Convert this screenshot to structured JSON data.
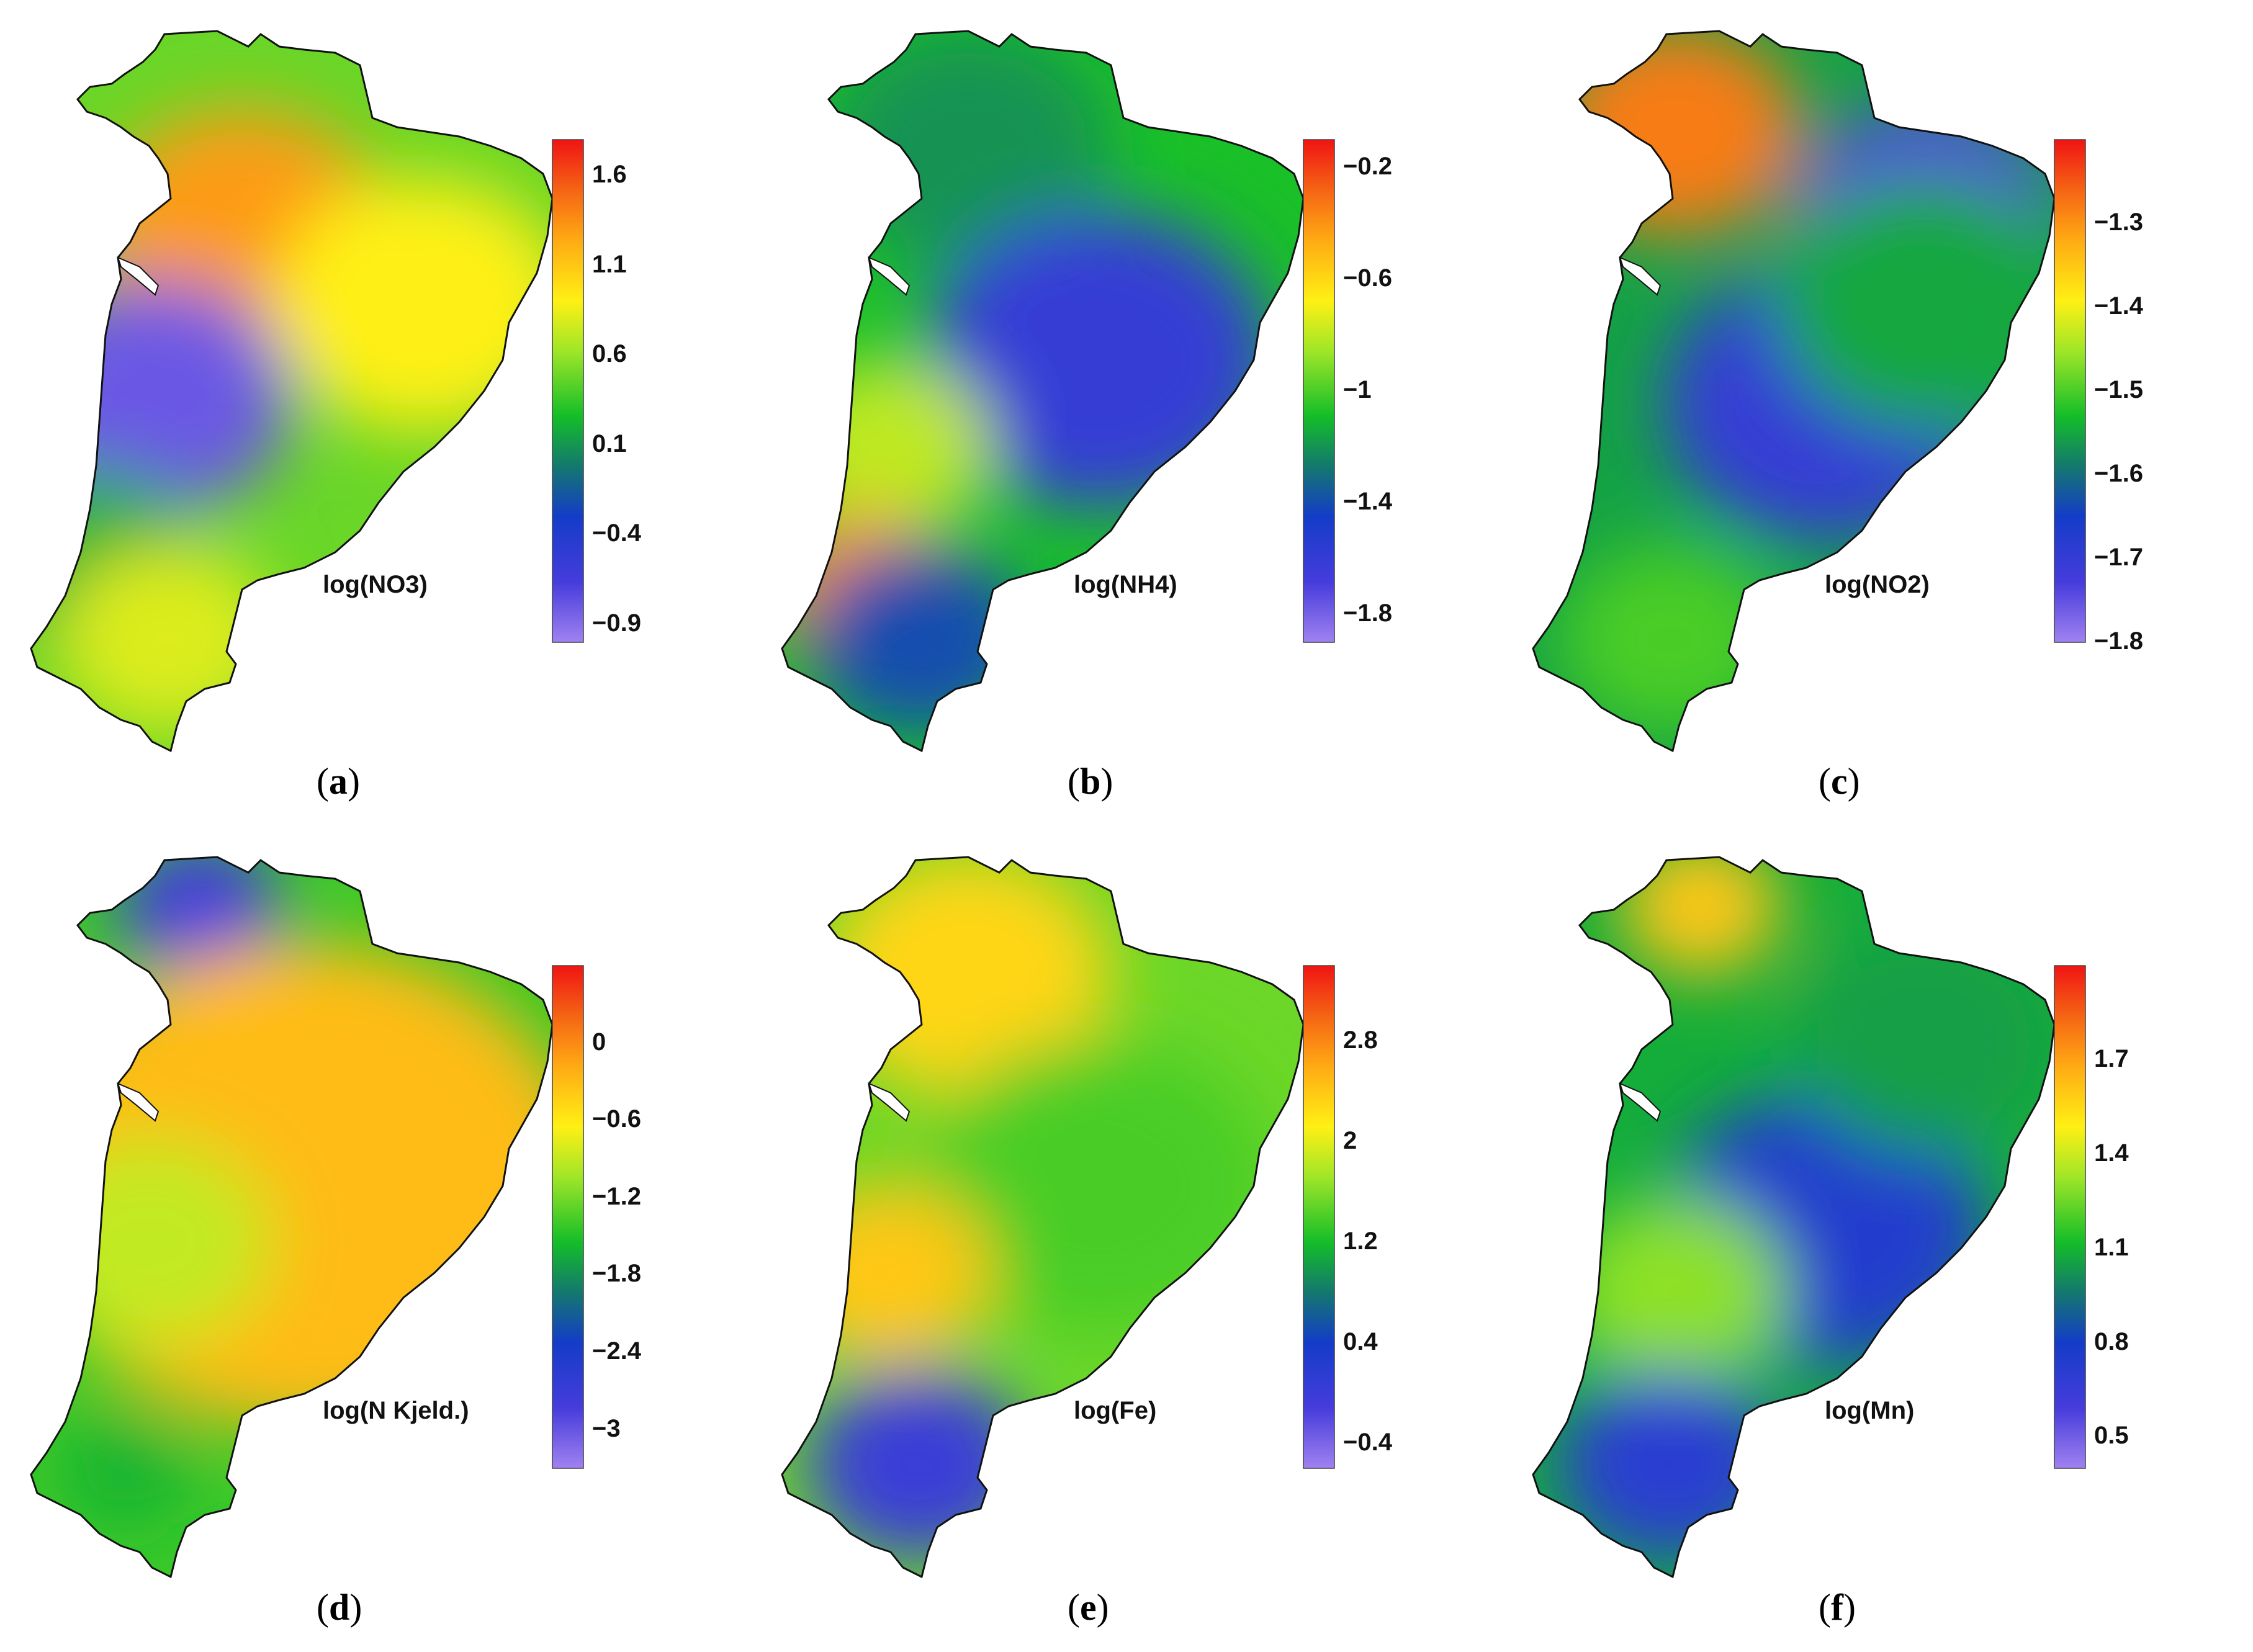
{
  "figure": {
    "panels": [
      {
        "id": "a",
        "caption_letter": "a",
        "variable_label": "log(NO3)",
        "colorbar": {
          "min": -1.0,
          "max": 1.8,
          "tick_labels": [
            "1.6",
            "1.1",
            "0.6",
            "0.1",
            "−0.4",
            "−0.9"
          ],
          "tick_values": [
            1.6,
            1.1,
            0.6,
            0.1,
            -0.4,
            -0.9
          ]
        },
        "zones": [
          {
            "region": "northeast-center",
            "level": 1.3
          },
          {
            "region": "east",
            "level": 0.9
          },
          {
            "region": "west-coast-center",
            "level": -0.8
          },
          {
            "region": "southwest",
            "level": 0.2
          },
          {
            "region": "south",
            "level": 0.8
          }
        ]
      },
      {
        "id": "b",
        "caption_letter": "b",
        "variable_label": "log(NH4)",
        "colorbar": {
          "min": -1.9,
          "max": -0.1,
          "tick_labels": [
            "−0.2",
            "−0.6",
            "−1",
            "−1.4",
            "−1.8"
          ],
          "tick_values": [
            -0.2,
            -0.6,
            -1.0,
            -1.4,
            -1.8
          ]
        },
        "zones": [
          {
            "region": "north",
            "level": -1.2
          },
          {
            "region": "center-east",
            "level": -1.6
          },
          {
            "region": "west-coast",
            "level": -0.8
          },
          {
            "region": "southwest-coast",
            "level": -0.4
          },
          {
            "region": "south",
            "level": -1.4
          }
        ]
      },
      {
        "id": "c",
        "caption_letter": "c",
        "variable_label": "log(NO2)",
        "colorbar": {
          "min": -1.8,
          "max": -1.2,
          "tick_labels": [
            "−1.3",
            "−1.4",
            "−1.5",
            "−1.6",
            "−1.7",
            "−1.8"
          ],
          "tick_values": [
            -1.3,
            -1.4,
            -1.5,
            -1.6,
            -1.7,
            -1.8
          ]
        },
        "zones": [
          {
            "region": "northwest",
            "level": -1.28
          },
          {
            "region": "northeast",
            "level": -1.74
          },
          {
            "region": "center-band",
            "level": -1.7
          },
          {
            "region": "south",
            "level": -1.5
          },
          {
            "region": "east",
            "level": -1.55
          }
        ]
      },
      {
        "id": "d",
        "caption_letter": "d",
        "variable_label": "log(N Kjeld.)",
        "colorbar": {
          "min": -3.3,
          "max": 0.6,
          "tick_labels": [
            "0",
            "−0.6",
            "−1.2",
            "−1.8",
            "−2.4",
            "−3"
          ],
          "tick_values": [
            0,
            -0.6,
            -1.2,
            -1.8,
            -2.4,
            -3.0
          ]
        },
        "zones": [
          {
            "region": "north-tip",
            "level": -2.8
          },
          {
            "region": "most-area",
            "level": -0.3
          },
          {
            "region": "west",
            "level": -0.9
          },
          {
            "region": "southwest-spot",
            "level": -1.6
          }
        ]
      },
      {
        "id": "e",
        "caption_letter": "e",
        "variable_label": "log(Fe)",
        "colorbar": {
          "min": -0.6,
          "max": 3.4,
          "tick_labels": [
            "2.8",
            "2",
            "1.2",
            "0.4",
            "−0.4"
          ],
          "tick_values": [
            2.8,
            2.0,
            1.2,
            0.4,
            -0.4
          ]
        },
        "zones": [
          {
            "region": "north",
            "level": 2.3
          },
          {
            "region": "center-east",
            "level": 1.4
          },
          {
            "region": "west-coast",
            "level": 2.4
          },
          {
            "region": "south",
            "level": 0.0
          }
        ]
      },
      {
        "id": "f",
        "caption_letter": "f",
        "variable_label": "log(Mn)",
        "colorbar": {
          "min": 0.4,
          "max": 2.0,
          "tick_labels": [
            "1.7",
            "1.4",
            "1.1",
            "0.8",
            "0.5"
          ],
          "tick_values": [
            1.7,
            1.4,
            1.1,
            0.8,
            0.5
          ]
        },
        "zones": [
          {
            "region": "north-tip",
            "level": 1.6
          },
          {
            "region": "center-band",
            "level": 0.75
          },
          {
            "region": "northeast",
            "level": 1.05
          },
          {
            "region": "west-center",
            "level": 1.3
          },
          {
            "region": "south",
            "level": 0.7
          }
        ]
      }
    ]
  }
}
